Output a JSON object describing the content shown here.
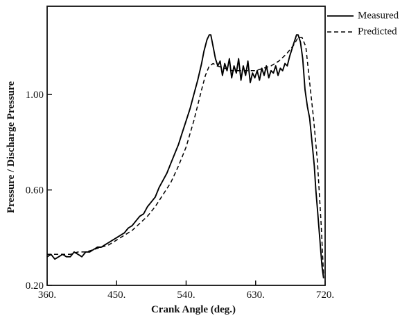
{
  "chart_data": {
    "type": "line",
    "title": "",
    "xlabel": "Crank Angle (deg.)",
    "ylabel": "Pressure / Discharge Pressure",
    "xlim": [
      360,
      720
    ],
    "ylim": [
      0.2,
      1.37
    ],
    "xticks": [
      360,
      450,
      540,
      630,
      720
    ],
    "xtick_labels": [
      "360.",
      "450.",
      "540.",
      "630.",
      "720."
    ],
    "yticks": [
      0.2,
      0.6,
      1.0
    ],
    "ytick_labels": [
      "0.20",
      "0.60",
      "1.00"
    ],
    "grid": false,
    "legend_position": "outside-top-right",
    "series": [
      {
        "name": "Measured",
        "style": "solid",
        "color": "#000000",
        "x": [
          360,
          365,
          370,
          375,
          380,
          385,
          390,
          395,
          400,
          405,
          410,
          415,
          420,
          425,
          430,
          435,
          440,
          445,
          450,
          455,
          460,
          465,
          470,
          475,
          480,
          485,
          490,
          495,
          500,
          505,
          510,
          515,
          520,
          525,
          530,
          535,
          540,
          545,
          550,
          555,
          560,
          563,
          567,
          570,
          572,
          575,
          578,
          581,
          584,
          587,
          590,
          593,
          596,
          599,
          602,
          605,
          608,
          611,
          614,
          617,
          620,
          623,
          626,
          629,
          632,
          635,
          638,
          641,
          644,
          647,
          650,
          653,
          656,
          659,
          662,
          665,
          668,
          671,
          674,
          677,
          680,
          683,
          685,
          688,
          691,
          694,
          697,
          700,
          703,
          706,
          708,
          710,
          712,
          714,
          716,
          718
        ],
        "y": [
          0.32,
          0.33,
          0.31,
          0.32,
          0.33,
          0.32,
          0.32,
          0.34,
          0.33,
          0.32,
          0.34,
          0.34,
          0.35,
          0.36,
          0.36,
          0.37,
          0.38,
          0.39,
          0.4,
          0.41,
          0.42,
          0.44,
          0.45,
          0.47,
          0.49,
          0.5,
          0.53,
          0.55,
          0.57,
          0.61,
          0.64,
          0.67,
          0.71,
          0.75,
          0.79,
          0.84,
          0.89,
          0.94,
          1.0,
          1.06,
          1.13,
          1.18,
          1.23,
          1.25,
          1.25,
          1.2,
          1.15,
          1.12,
          1.14,
          1.08,
          1.13,
          1.1,
          1.15,
          1.07,
          1.12,
          1.09,
          1.15,
          1.06,
          1.12,
          1.08,
          1.14,
          1.05,
          1.09,
          1.07,
          1.1,
          1.06,
          1.11,
          1.08,
          1.12,
          1.07,
          1.1,
          1.09,
          1.12,
          1.08,
          1.11,
          1.1,
          1.13,
          1.12,
          1.16,
          1.19,
          1.22,
          1.25,
          1.25,
          1.22,
          1.15,
          1.02,
          0.95,
          0.9,
          0.8,
          0.7,
          0.6,
          0.52,
          0.44,
          0.36,
          0.28,
          0.23
        ]
      },
      {
        "name": "Predicted",
        "style": "dashed",
        "color": "#000000",
        "x": [
          360,
          370,
          380,
          390,
          400,
          410,
          420,
          430,
          440,
          450,
          460,
          470,
          480,
          490,
          500,
          510,
          520,
          530,
          540,
          550,
          560,
          565,
          570,
          575,
          580,
          590,
          600,
          610,
          620,
          630,
          640,
          650,
          660,
          670,
          680,
          685,
          690,
          695,
          700,
          705,
          710,
          715,
          718
        ],
        "y": [
          0.33,
          0.33,
          0.33,
          0.33,
          0.34,
          0.34,
          0.35,
          0.36,
          0.37,
          0.39,
          0.41,
          0.43,
          0.46,
          0.49,
          0.53,
          0.58,
          0.63,
          0.7,
          0.78,
          0.89,
          1.02,
          1.08,
          1.12,
          1.13,
          1.12,
          1.11,
          1.1,
          1.1,
          1.1,
          1.1,
          1.11,
          1.12,
          1.14,
          1.17,
          1.21,
          1.24,
          1.24,
          1.2,
          1.05,
          0.9,
          0.72,
          0.45,
          0.24
        ]
      }
    ]
  },
  "colors": {
    "axis": "#111111",
    "line": "#000000",
    "background": "#ffffff"
  }
}
